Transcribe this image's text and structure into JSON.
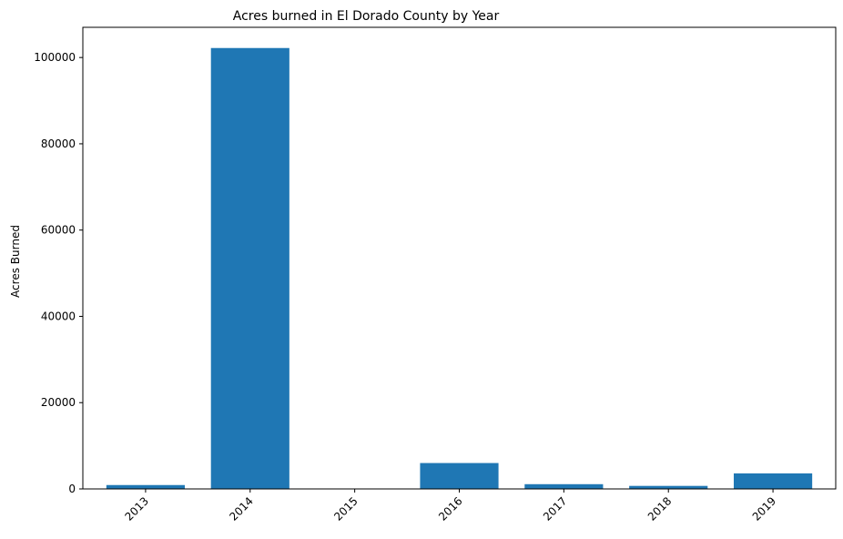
{
  "chart_data": {
    "type": "bar",
    "title": "Acres burned in El Dorado County by Year",
    "xlabel": "",
    "ylabel": "Acres Burned",
    "categories": [
      "2013",
      "2014",
      "2015",
      "2016",
      "2017",
      "2018",
      "2019"
    ],
    "values": [
      900,
      102200,
      0,
      6000,
      1100,
      700,
      3600
    ],
    "ylim": [
      0,
      107000
    ],
    "yticks": [
      0,
      20000,
      40000,
      60000,
      80000,
      100000
    ],
    "ytick_labels": [
      "0",
      "20000",
      "40000",
      "60000",
      "80000",
      "100000"
    ],
    "grid": false,
    "bar_color": "#1f77b4",
    "xtick_rotation": "45deg"
  }
}
